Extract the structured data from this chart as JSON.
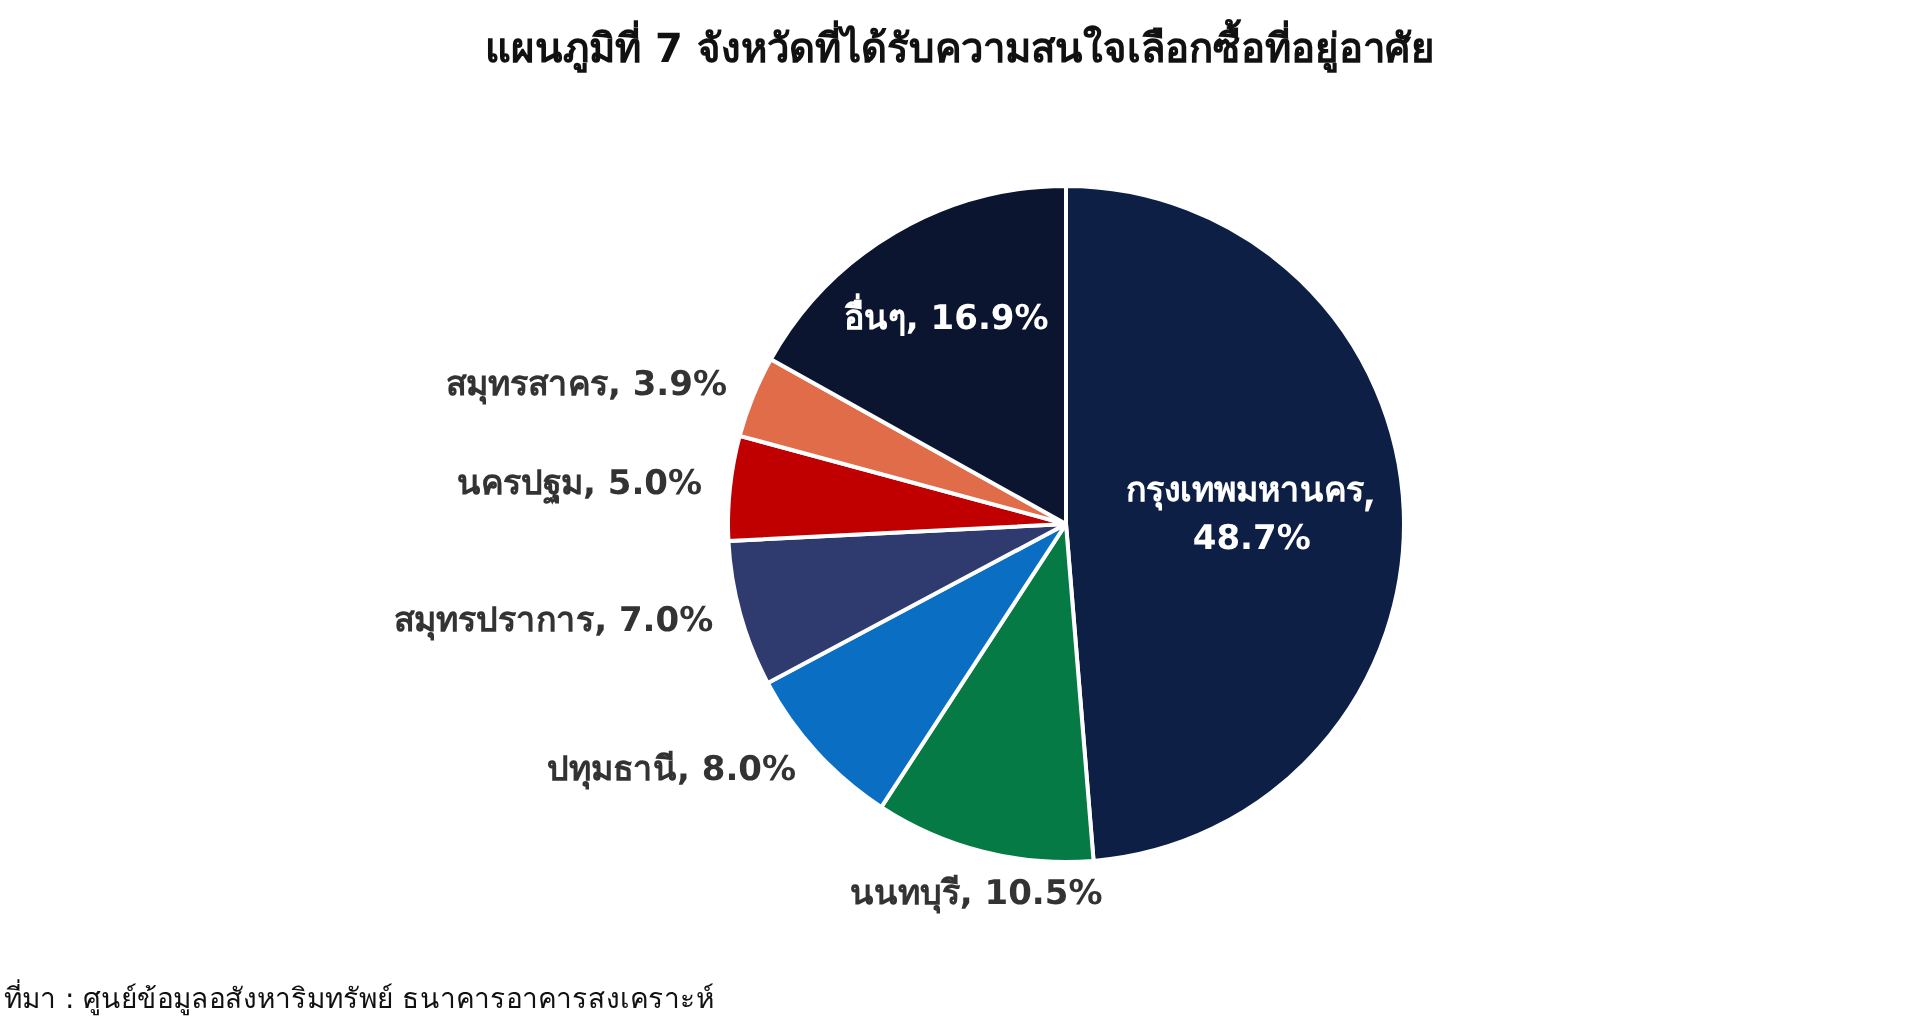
{
  "chart_data": {
    "type": "pie",
    "title": "แผนภูมิที่ 7 จังหวัดที่ได้รับความสนใจเลือกซื้อที่อยู่อาศัย",
    "categories": [
      "กรุงเทพมหานคร",
      "นนทบุรี",
      "ปทุมธานี",
      "สมุทรปราการ",
      "นครปฐม",
      "สมุทรสาคร",
      "อื่นๆ"
    ],
    "values": [
      48.7,
      10.5,
      8.0,
      7.0,
      5.0,
      3.9,
      16.9
    ],
    "value_labels": [
      "48.7%",
      "10.5%",
      "8.0%",
      "7.0%",
      "5.0%",
      "3.9%",
      "16.9%"
    ],
    "colors": [
      "#0d1f45",
      "#067a45",
      "#0a6fc2",
      "#2f3a6e",
      "#c00000",
      "#e06c4a",
      "#0b1530"
    ],
    "annotations": [
      "ที่มา : ศูนย์ข้อมูลอสังหาริมทรัพย์ ธนาคารอาคารสงเคราะห์"
    ]
  }
}
